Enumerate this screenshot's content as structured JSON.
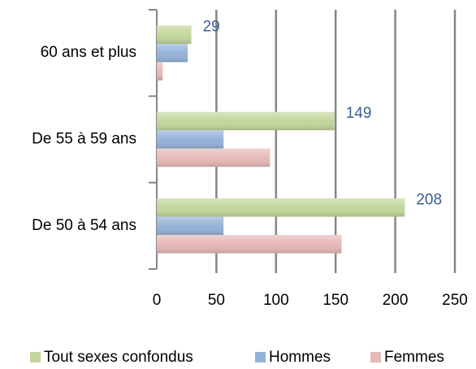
{
  "chart_data": {
    "type": "barh",
    "categories": [
      "60 ans et plus",
      "De 55 à 59 ans",
      "De 50 à 54 ans"
    ],
    "series": [
      {
        "name": "Tout sexes confondus",
        "color": "#c3d69b",
        "values": [
          29,
          149,
          208
        ],
        "labels": true
      },
      {
        "name": "Hommes",
        "color": "#95b3d7",
        "values": [
          26,
          56,
          56
        ]
      },
      {
        "name": "Femmes",
        "color": "#e6b9b8",
        "values": [
          5,
          95,
          155
        ]
      }
    ],
    "xlim": [
      0,
      250
    ],
    "xticks": [
      0,
      50,
      100,
      150,
      200,
      250
    ],
    "grid": true,
    "legend": "bottom"
  }
}
